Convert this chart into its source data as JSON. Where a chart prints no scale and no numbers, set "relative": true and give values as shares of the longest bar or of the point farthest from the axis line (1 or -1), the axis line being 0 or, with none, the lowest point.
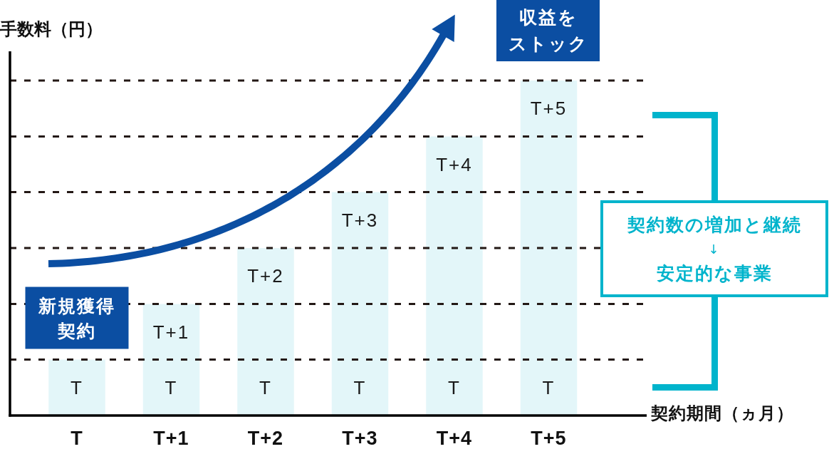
{
  "chart_data": {
    "type": "bar",
    "xlabel": "契約期間（ヵ月）",
    "ylabel": "手数料（円）",
    "categories": [
      "T",
      "T+1",
      "T+2",
      "T+3",
      "T+4",
      "T+5"
    ],
    "relative": true,
    "values": [
      0.167,
      0.333,
      0.5,
      0.667,
      0.833,
      1
    ],
    "color": "#e3f6f9",
    "ref_lines": [
      {
        "axis": "y",
        "value": 0.167,
        "color": "#231815",
        "line_style": "dashed"
      },
      {
        "axis": "y",
        "value": 0.333,
        "color": "#231815",
        "line_style": "dashed"
      },
      {
        "axis": "y",
        "value": 0.5,
        "color": "#231815",
        "line_style": "dashed"
      },
      {
        "axis": "y",
        "value": 0.667,
        "color": "#231815",
        "line_style": "dashed"
      },
      {
        "axis": "y",
        "value": 0.833,
        "color": "#231815",
        "line_style": "dashed"
      },
      {
        "axis": "y",
        "value": 1,
        "color": "#231815",
        "line_style": "dashed"
      }
    ],
    "annotations": [
      "収益を",
      "ストック",
      {
        "text": "新規獲得契約",
        "x": "T",
        "y": 0.167
      },
      "契約数の増加と継続\n↓\n安定的な事業",
      "T",
      "T",
      "T+1",
      "T",
      "T+2",
      "T",
      "T+3",
      "T",
      "T+4",
      "T",
      "T+5"
    ]
  }
}
